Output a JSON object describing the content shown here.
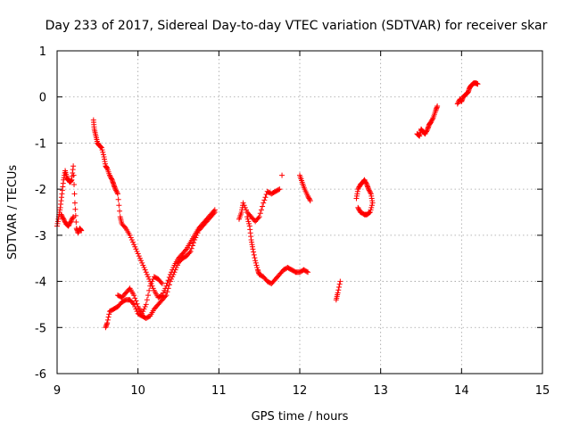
{
  "chart_data": {
    "type": "scatter",
    "title": "Day 233 of 2017, Sidereal Day-to-day VTEC variation (SDTVAR) for receiver skar",
    "xlabel": "GPS time / hours",
    "ylabel": "SDTVAR / TECUs",
    "xlim": [
      9,
      15
    ],
    "ylim": [
      -6,
      1
    ],
    "xticks": [
      9,
      10,
      11,
      12,
      13,
      14,
      15
    ],
    "yticks": [
      -6,
      -5,
      -4,
      -3,
      -2,
      -1,
      0,
      1
    ],
    "grid": true,
    "marker": "+",
    "color": "#ff0000",
    "series": [
      {
        "name": "trace-a-start",
        "x": [
          9.0,
          9.02,
          9.04,
          9.06,
          9.08,
          9.1,
          9.12,
          9.14,
          9.16,
          9.18,
          9.2,
          9.22,
          9.24,
          9.26,
          9.28,
          9.3
        ],
        "y": [
          -2.8,
          -2.6,
          -2.4,
          -2.1,
          -1.8,
          -1.6,
          -1.75,
          -1.8,
          -1.85,
          -1.8,
          -1.5,
          -2.3,
          -2.85,
          -2.95,
          -2.85,
          -2.9
        ]
      },
      {
        "name": "trace-a-low",
        "x": [
          9.05,
          9.08,
          9.11,
          9.14,
          9.17,
          9.2
        ],
        "y": [
          -2.55,
          -2.65,
          -2.75,
          -2.8,
          -2.7,
          -2.6
        ]
      },
      {
        "name": "trace-b",
        "x": [
          9.45,
          9.46,
          9.48,
          9.5,
          9.52,
          9.55,
          9.58,
          9.6,
          9.62,
          9.65,
          9.68,
          9.7,
          9.72,
          9.75,
          9.78,
          9.8,
          9.85,
          9.9,
          9.95,
          10.0,
          10.05,
          10.1,
          10.15,
          10.2,
          10.25,
          10.3,
          10.35,
          10.4,
          10.45,
          10.5,
          10.55,
          10.6,
          10.65,
          10.7,
          10.75,
          10.8,
          10.85,
          10.9,
          10.95
        ],
        "y": [
          -0.5,
          -0.7,
          -0.85,
          -1.0,
          -1.05,
          -1.1,
          -1.3,
          -1.5,
          -1.55,
          -1.7,
          -1.8,
          -1.9,
          -2.0,
          -2.1,
          -2.6,
          -2.75,
          -2.85,
          -3.0,
          -3.2,
          -3.4,
          -3.6,
          -3.8,
          -4.0,
          -4.2,
          -4.35,
          -4.3,
          -4.1,
          -3.85,
          -3.65,
          -3.5,
          -3.4,
          -3.3,
          -3.15,
          -3.0,
          -2.85,
          -2.75,
          -2.65,
          -2.55,
          -2.45
        ]
      },
      {
        "name": "trace-c",
        "x": [
          9.6,
          9.62,
          9.65,
          9.7,
          9.75,
          9.8,
          9.85,
          9.9,
          9.95,
          10.0,
          10.05,
          10.1,
          10.15,
          10.2,
          10.25,
          10.3,
          10.35,
          10.4,
          10.45,
          10.5,
          10.55,
          10.6,
          10.65,
          10.7,
          10.75,
          10.8,
          10.85,
          10.9,
          10.95
        ],
        "y": [
          -5.0,
          -4.9,
          -4.65,
          -4.6,
          -4.55,
          -4.45,
          -4.4,
          -4.4,
          -4.5,
          -4.7,
          -4.75,
          -4.8,
          -4.75,
          -4.6,
          -4.5,
          -4.4,
          -4.3,
          -4.0,
          -3.8,
          -3.6,
          -3.5,
          -3.45,
          -3.35,
          -3.1,
          -2.9,
          -2.8,
          -2.7,
          -2.6,
          -2.5
        ]
      },
      {
        "name": "trace-d",
        "x": [
          9.75,
          9.8,
          9.85,
          9.9,
          9.95,
          10.0,
          10.05,
          10.1,
          10.15,
          10.2,
          10.25,
          10.3
        ],
        "y": [
          -4.3,
          -4.35,
          -4.25,
          -4.15,
          -4.3,
          -4.55,
          -4.7,
          -4.5,
          -4.1,
          -3.9,
          -3.95,
          -4.05
        ]
      },
      {
        "name": "trace-e",
        "x": [
          11.25,
          11.28,
          11.3,
          11.35,
          11.4,
          11.45,
          11.5,
          11.55,
          11.6,
          11.65,
          11.7,
          11.75
        ],
        "y": [
          -2.65,
          -2.5,
          -2.3,
          -2.5,
          -2.6,
          -2.7,
          -2.6,
          -2.3,
          -2.05,
          -2.1,
          -2.05,
          -2.0
        ]
      },
      {
        "name": "trace-e-end",
        "x": [
          11.78
        ],
        "y": [
          -1.7
        ]
      },
      {
        "name": "trace-f",
        "x": [
          11.35,
          11.38,
          11.4,
          11.42,
          11.45,
          11.48,
          11.5,
          11.55,
          11.6,
          11.65,
          11.7,
          11.75,
          11.8,
          11.85,
          11.9,
          11.95,
          12.0,
          12.05,
          12.1
        ],
        "y": [
          -2.6,
          -2.8,
          -3.1,
          -3.3,
          -3.55,
          -3.75,
          -3.85,
          -3.9,
          -4.0,
          -4.05,
          -3.95,
          -3.85,
          -3.75,
          -3.7,
          -3.75,
          -3.8,
          -3.8,
          -3.75,
          -3.8
        ]
      },
      {
        "name": "trace-g",
        "x": [
          12.0,
          12.03,
          12.06,
          12.1,
          12.13
        ],
        "y": [
          -1.7,
          -1.85,
          -2.0,
          -2.15,
          -2.25
        ]
      },
      {
        "name": "trace-h",
        "x": [
          12.45,
          12.47,
          12.5
        ],
        "y": [
          -4.4,
          -4.25,
          -4.0
        ]
      },
      {
        "name": "trace-i",
        "x": [
          12.7,
          12.72,
          12.75,
          12.78,
          12.8,
          12.83,
          12.85,
          12.88,
          12.9,
          12.87,
          12.83,
          12.8,
          12.75,
          12.72
        ],
        "y": [
          -2.2,
          -2.0,
          -1.9,
          -1.85,
          -1.8,
          -1.9,
          -2.0,
          -2.1,
          -2.3,
          -2.5,
          -2.55,
          -2.55,
          -2.5,
          -2.4
        ]
      },
      {
        "name": "trace-j",
        "x": [
          13.45,
          13.48,
          13.5,
          13.52,
          13.55,
          13.58,
          13.6,
          13.62,
          13.65,
          13.68,
          13.7
        ],
        "y": [
          -0.8,
          -0.85,
          -0.7,
          -0.75,
          -0.8,
          -0.7,
          -0.6,
          -0.55,
          -0.45,
          -0.3,
          -0.2
        ]
      },
      {
        "name": "trace-k",
        "x": [
          13.95,
          13.98,
          14.0,
          14.02,
          14.05,
          14.08,
          14.1,
          14.12,
          14.15,
          14.18,
          14.2
        ],
        "y": [
          -0.15,
          -0.05,
          -0.1,
          0.0,
          0.05,
          0.1,
          0.2,
          0.25,
          0.3,
          0.3,
          0.28
        ]
      }
    ]
  }
}
